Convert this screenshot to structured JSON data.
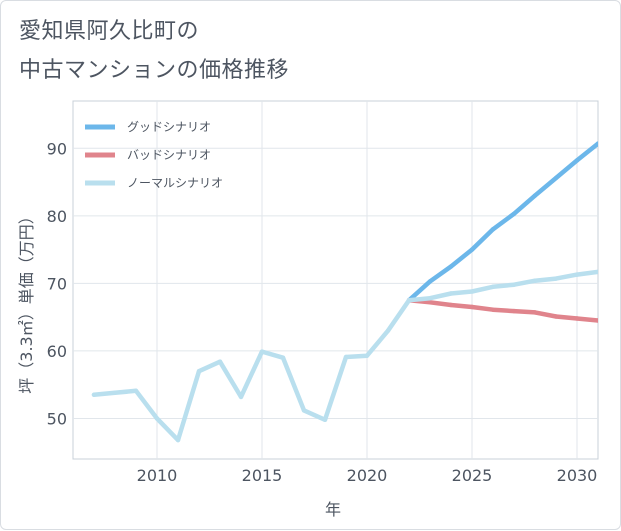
{
  "title_line1": "愛知県阿久比町の",
  "title_line2": "中古マンションの価格推移",
  "chart_data": {
    "type": "line",
    "title": "愛知県阿久比町の中古マンションの価格推移",
    "xlabel": "年",
    "ylabel": "坪（3.3㎡）単価（万円）",
    "xlim": [
      2006,
      2031
    ],
    "ylim": [
      44,
      97
    ],
    "xticks": [
      2010,
      2015,
      2020,
      2025,
      2030
    ],
    "yticks": [
      50,
      60,
      70,
      80,
      90
    ],
    "grid": true,
    "legend_position": "top-left",
    "series": [
      {
        "name": "グッドシナリオ",
        "color": "#6cb7ea",
        "x": [
          2022,
          2023,
          2024,
          2025,
          2026,
          2027,
          2028,
          2029,
          2030,
          2031
        ],
        "values": [
          67.5,
          70.3,
          72.5,
          75.0,
          78.0,
          80.3,
          83.0,
          85.6,
          88.2,
          90.7
        ]
      },
      {
        "name": "バッドシナリオ",
        "color": "#e0848c",
        "x": [
          2022,
          2023,
          2024,
          2025,
          2026,
          2027,
          2028,
          2029,
          2030,
          2031
        ],
        "values": [
          67.5,
          67.2,
          66.8,
          66.5,
          66.1,
          65.9,
          65.7,
          65.1,
          64.8,
          64.5
        ]
      },
      {
        "name": "ノーマルシナリオ",
        "color": "#b9dfee",
        "x": [
          2007,
          2008,
          2009,
          2010,
          2011,
          2012,
          2013,
          2014,
          2015,
          2016,
          2017,
          2018,
          2019,
          2020,
          2021,
          2022,
          2023,
          2024,
          2025,
          2026,
          2027,
          2028,
          2029,
          2030,
          2031
        ],
        "values": [
          53.5,
          53.8,
          54.1,
          50.0,
          46.8,
          57.0,
          58.4,
          53.2,
          59.9,
          59.0,
          51.2,
          49.8,
          59.1,
          59.3,
          63.0,
          67.5,
          67.8,
          68.5,
          68.8,
          69.5,
          69.8,
          70.4,
          70.7,
          71.3,
          71.7
        ]
      }
    ]
  }
}
